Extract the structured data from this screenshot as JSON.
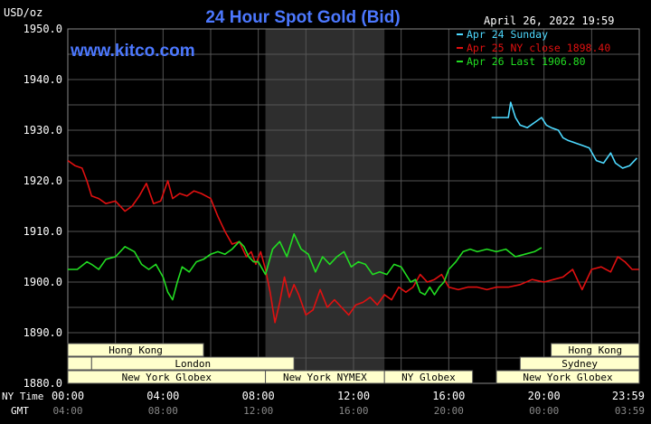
{
  "header": {
    "unit": "USD/oz",
    "title": "24 Hour Spot Gold (Bid)",
    "timestamp": "April 26, 2022 19:59",
    "watermark": "www.kitco.com"
  },
  "colors": {
    "background": "#000000",
    "grid": "#555555",
    "title": "#4c78ff",
    "axis_text": "#ffffff",
    "band_fill": "#ffffcc",
    "band_text": "#000000",
    "shade": "#2e2e2e"
  },
  "time_rows": {
    "ny_label": "NY Time",
    "gmt_label": "GMT"
  },
  "chart_data": {
    "type": "line",
    "title": "24 Hour Spot Gold (Bid)",
    "ylabel": "USD/oz",
    "xlabel": "",
    "xlim": [
      0,
      24
    ],
    "ylim": [
      1880,
      1950
    ],
    "y_ticks": [
      1950,
      1940,
      1930,
      1920,
      1910,
      1900,
      1890,
      1880
    ],
    "y_tick_labels": [
      "1950.0",
      "1940.0",
      "1930.0",
      "1920.0",
      "1910.0",
      "1900.0",
      "1890.0",
      "1880.0"
    ],
    "x_ticks": [
      0,
      4,
      8,
      12,
      16,
      20,
      24
    ],
    "x_tick_labels": [
      "00:00",
      "04:00",
      "08:00",
      "12:00",
      "16:00",
      "20:00",
      "23:59"
    ],
    "gmt_tick_labels": [
      "04:00",
      "08:00",
      "12:00",
      "16:00",
      "20:00",
      "00:00",
      "03:59"
    ],
    "shaded_region": [
      8.3,
      13.3
    ],
    "grid": true,
    "legend_position": "top-right",
    "series": [
      {
        "name": "Apr 24 Sunday",
        "color": "#4dd9ff",
        "x": [
          17.8,
          18.5,
          18.6,
          18.8,
          19.0,
          19.3,
          19.6,
          19.9,
          20.1,
          20.3,
          20.6,
          20.8,
          21.0,
          21.3,
          21.6,
          21.9,
          22.2,
          22.5,
          22.8,
          23.0,
          23.3,
          23.6,
          23.9
        ],
        "y": [
          1932.5,
          1932.5,
          1935.5,
          1932.5,
          1931.0,
          1930.5,
          1931.5,
          1932.5,
          1931.0,
          1930.5,
          1930.0,
          1928.5,
          1928.0,
          1927.5,
          1927.0,
          1926.5,
          1924.0,
          1923.5,
          1925.5,
          1923.5,
          1922.5,
          1923.0,
          1924.5
        ]
      },
      {
        "name": "Apr 25 NY close 1898.40",
        "color": "#e01010",
        "x": [
          0.0,
          0.3,
          0.6,
          0.8,
          1.0,
          1.3,
          1.6,
          2.0,
          2.4,
          2.7,
          3.0,
          3.3,
          3.6,
          3.9,
          4.2,
          4.4,
          4.7,
          5.0,
          5.3,
          5.6,
          6.0,
          6.3,
          6.6,
          6.9,
          7.2,
          7.5,
          7.7,
          7.9,
          8.1,
          8.3,
          8.5,
          8.7,
          8.9,
          9.1,
          9.3,
          9.5,
          9.7,
          10.0,
          10.3,
          10.6,
          10.9,
          11.2,
          11.5,
          11.8,
          12.1,
          12.4,
          12.7,
          13.0,
          13.3,
          13.6,
          13.9,
          14.2,
          14.5,
          14.8,
          15.1,
          15.4,
          15.7,
          16.0,
          16.4,
          16.8,
          17.2,
          17.6,
          18.0,
          18.5,
          19.0,
          19.5,
          20.0,
          20.4,
          20.8,
          21.2,
          21.6,
          22.0,
          22.4,
          22.8,
          23.1,
          23.4,
          23.7,
          23.99
        ],
        "y": [
          1924.0,
          1923.0,
          1922.5,
          1920.0,
          1917.0,
          1916.5,
          1915.5,
          1916.0,
          1914.0,
          1915.0,
          1917.0,
          1919.5,
          1915.5,
          1916.0,
          1920.0,
          1916.5,
          1917.5,
          1917.0,
          1918.0,
          1917.5,
          1916.5,
          1913.0,
          1910.0,
          1907.5,
          1908.0,
          1905.0,
          1906.0,
          1903.5,
          1906.0,
          1902.5,
          1898.0,
          1892.0,
          1896.0,
          1901.0,
          1897.0,
          1899.5,
          1897.5,
          1893.5,
          1894.5,
          1898.5,
          1895.0,
          1896.5,
          1895.0,
          1893.5,
          1895.5,
          1896.0,
          1897.0,
          1895.5,
          1897.5,
          1896.5,
          1899.0,
          1898.0,
          1899.0,
          1901.5,
          1900.0,
          1900.5,
          1901.5,
          1899.0,
          1898.5,
          1899.0,
          1899.0,
          1898.5,
          1899.0,
          1899.0,
          1899.5,
          1900.5,
          1900.0,
          1900.5,
          1901.0,
          1902.5,
          1898.5,
          1902.5,
          1903.0,
          1902.0,
          1905.0,
          1904.0,
          1902.5,
          1902.5
        ]
      },
      {
        "name": "Apr 26 Last 1906.80",
        "color": "#22dd22",
        "x": [
          0.0,
          0.4,
          0.8,
          1.0,
          1.3,
          1.6,
          2.0,
          2.4,
          2.8,
          3.1,
          3.4,
          3.7,
          4.0,
          4.2,
          4.4,
          4.6,
          4.8,
          5.1,
          5.4,
          5.7,
          6.0,
          6.3,
          6.6,
          6.9,
          7.2,
          7.4,
          7.6,
          7.8,
          8.0,
          8.3,
          8.6,
          8.9,
          9.2,
          9.5,
          9.8,
          10.1,
          10.4,
          10.7,
          11.0,
          11.3,
          11.6,
          11.9,
          12.2,
          12.5,
          12.8,
          13.1,
          13.4,
          13.7,
          14.0,
          14.2,
          14.4,
          14.6,
          14.8,
          15.0,
          15.2,
          15.4,
          15.6,
          15.8,
          16.0,
          16.3,
          16.6,
          16.9,
          17.2,
          17.6,
          18.0,
          18.4,
          18.8,
          19.2,
          19.6,
          19.9
        ],
        "y": [
          1902.5,
          1902.5,
          1904.0,
          1903.5,
          1902.5,
          1904.5,
          1905.0,
          1907.0,
          1906.0,
          1903.5,
          1902.5,
          1903.5,
          1901.0,
          1898.0,
          1896.5,
          1900.0,
          1903.0,
          1902.0,
          1904.0,
          1904.5,
          1905.5,
          1906.0,
          1905.5,
          1906.5,
          1908.0,
          1907.0,
          1905.0,
          1904.0,
          1904.0,
          1901.5,
          1906.5,
          1908.0,
          1905.0,
          1909.5,
          1906.5,
          1905.5,
          1902.0,
          1905.0,
          1903.5,
          1905.0,
          1906.0,
          1903.0,
          1904.0,
          1903.5,
          1901.5,
          1902.0,
          1901.5,
          1903.5,
          1903.0,
          1901.5,
          1900.0,
          1900.5,
          1898.0,
          1897.5,
          1899.0,
          1897.5,
          1899.0,
          1900.0,
          1902.5,
          1904.0,
          1906.0,
          1906.5,
          1906.0,
          1906.5,
          1906.0,
          1906.5,
          1905.0,
          1905.5,
          1906.0,
          1906.8
        ]
      }
    ]
  },
  "market_sessions": [
    {
      "label": "Hong Kong",
      "row": 0,
      "start": 0.0,
      "end": 5.7
    },
    {
      "label": "",
      "row": 1,
      "start": 0.0,
      "end": 1.0
    },
    {
      "label": "London",
      "row": 1,
      "start": 1.0,
      "end": 9.5
    },
    {
      "label": "New York Globex",
      "row": 2,
      "start": 0.0,
      "end": 8.3
    },
    {
      "label": "New York NYMEX",
      "row": 2,
      "start": 8.3,
      "end": 13.3
    },
    {
      "label": "NY Globex",
      "row": 2,
      "start": 13.3,
      "end": 17.0
    },
    {
      "label": "Hong Kong",
      "row": 0,
      "start": 20.3,
      "end": 24.0
    },
    {
      "label": "Sydney",
      "row": 1,
      "start": 19.0,
      "end": 24.0
    },
    {
      "label": "New York Globex",
      "row": 2,
      "start": 18.0,
      "end": 24.0
    }
  ]
}
